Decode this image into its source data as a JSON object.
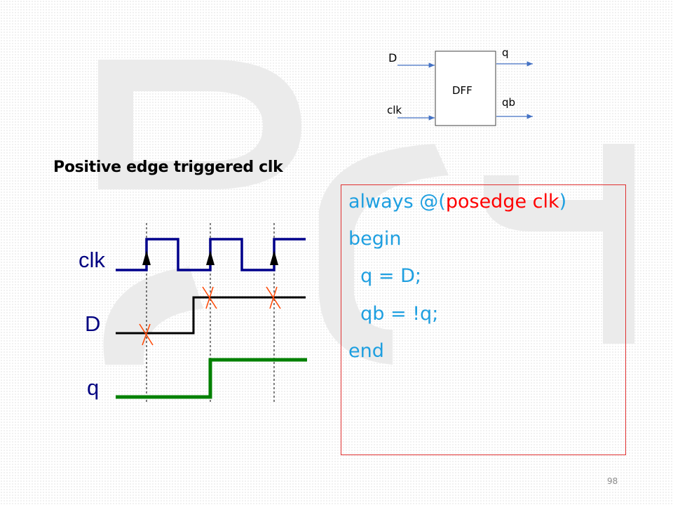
{
  "slide": {
    "title": "Positive edge triggered clk",
    "page_number": "98"
  },
  "block_diagram": {
    "box_label": "DFF",
    "inputs": [
      "D",
      "clk"
    ],
    "outputs": [
      "q",
      "qb"
    ],
    "arrow_color": "#4472c4"
  },
  "timing_diagram": {
    "signals": [
      {
        "name": "clk",
        "color": "#00008b",
        "label_color": "#000080"
      },
      {
        "name": "D",
        "color": "#000000",
        "label_color": "#000080"
      },
      {
        "name": "q",
        "color": "#008000",
        "label_color": "#000080"
      }
    ],
    "clock_edges": 3,
    "cross_mark_color": "#ff4500"
  },
  "code": {
    "lines": [
      {
        "parts": [
          {
            "text": "always @(",
            "style": "normal"
          },
          {
            "text": "posedge clk",
            "style": "red"
          },
          {
            "text": ")",
            "style": "normal"
          }
        ]
      },
      {
        "parts": [
          {
            "text": "begin",
            "style": "normal"
          }
        ]
      },
      {
        "parts": [
          {
            "text": "  q = D;",
            "style": "normal"
          }
        ]
      },
      {
        "parts": [
          {
            "text": "  qb = !q;",
            "style": "normal"
          }
        ]
      },
      {
        "parts": [
          {
            "text": "end",
            "style": "normal"
          }
        ]
      }
    ],
    "text_color": "#1e9fe0",
    "keyword_color": "#ff0000",
    "border_color": "#e03030"
  }
}
